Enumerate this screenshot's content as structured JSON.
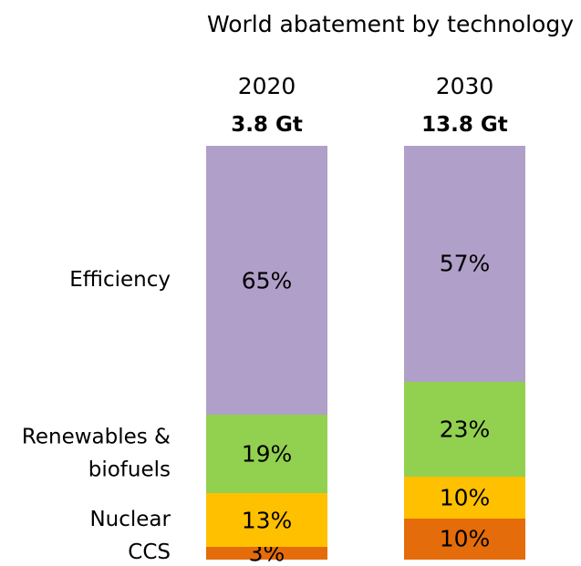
{
  "chart_data": {
    "type": "stacked_bar",
    "title": "World abatement by technology",
    "categories": [
      "2020",
      "2030"
    ],
    "totals": [
      "3.8 Gt",
      "13.8 Gt"
    ],
    "ylim": [
      0,
      100
    ],
    "series": [
      {
        "name": "Efficiency",
        "color": "#b09fc8",
        "values": [
          65,
          57
        ],
        "value_labels": [
          "65%",
          "57%"
        ]
      },
      {
        "name": "Renewables & biofuels",
        "color": "#92d050",
        "values": [
          19,
          23
        ],
        "value_labels": [
          "19%",
          "23%"
        ]
      },
      {
        "name": "Nuclear",
        "color": "#ffc000",
        "values": [
          13,
          10
        ],
        "value_labels": [
          "13%",
          "10%"
        ]
      },
      {
        "name": "CCS",
        "color": "#e46c0a",
        "values": [
          3,
          10
        ],
        "value_labels": [
          "3%",
          "10%"
        ]
      }
    ]
  }
}
